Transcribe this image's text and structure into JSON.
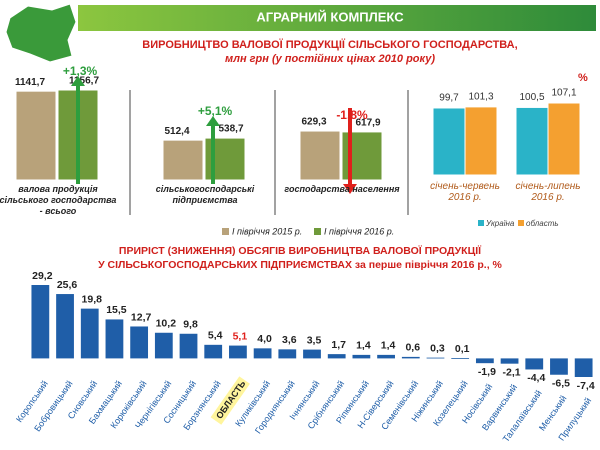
{
  "header": {
    "title": "АГРАРНИЙ КОМПЛЕКС"
  },
  "chart_data": [
    {
      "type": "photo-bar",
      "title": "ВИРОБНИЦТВО ВАЛОВОЇ ПРОДУКЦІЇ СІЛЬСЬКОГО ГОСПОДАРСТВА,",
      "subtitle": "млн грн (у постійних цінах 2010 року)",
      "categories": [
        "валова продукція сільського господарства - всього",
        "сільськогосподарські підприємства",
        "господарства населення"
      ],
      "series": [
        {
          "name": "I півріччя 2015 р.",
          "color": "#b8a27a",
          "values": [
            1141.7,
            512.4,
            629.3
          ],
          "value_labels": [
            "1141,7",
            "512,4",
            "629,3"
          ]
        },
        {
          "name": "I півріччя 2016 р.",
          "color": "#6f9a3a",
          "values": [
            1156.7,
            538.7,
            617.9
          ],
          "value_labels": [
            "1156,7",
            "538,7",
            "617,9"
          ]
        }
      ],
      "change_labels": [
        "+1,3%",
        "+5,1%",
        "-1,8%"
      ],
      "change_colors": [
        "#2e9e3e",
        "#2e9e3e",
        "#e0201c"
      ]
    },
    {
      "type": "bar",
      "unit": "%",
      "categories": [
        "січень-червень 2016 р.",
        "січень-липень 2016 р."
      ],
      "series": [
        {
          "name": "Україна",
          "color": "#2ab3c8",
          "values": [
            99.7,
            100.5
          ],
          "value_labels": [
            "99,7",
            "100,5"
          ]
        },
        {
          "name": "область",
          "color": "#f4a030",
          "values": [
            101.3,
            107.1
          ],
          "value_labels": [
            "101,3",
            "107,1"
          ]
        }
      ]
    },
    {
      "type": "bar",
      "title": "ПРИРІСТ (ЗНИЖЕННЯ) ОБСЯГІВ ВИРОБНИЦТВА ВАЛОВОЇ ПРОДУКЦІЇ",
      "subtitle": "У СІЛЬСЬКОГОСПОДАРСЬКИХ ПІДПРИЄМСТВАХ за перше півріччя 2016 р., %",
      "color": "#1f5ea8",
      "categories": [
        "Коропський",
        "Бобровицький",
        "Сновський",
        "Бахмацький",
        "Корюківський",
        "Чернігівський",
        "Сосницький",
        "Борзнянський",
        "ОБЛАСТЬ",
        "Куликівський",
        "Городнянський",
        "Ічнянський",
        "Срібнянський",
        "Ріпкинський",
        "Н-Сіверський",
        "Семенівський",
        "Ніжинський",
        "Козелецький",
        "Носівський",
        "Варвинський",
        "Талалаївський",
        "Менський",
        "Прилуцький"
      ],
      "values": [
        29.2,
        25.6,
        19.8,
        15.5,
        12.7,
        10.2,
        9.8,
        5.4,
        5.1,
        4.0,
        3.6,
        3.5,
        1.7,
        1.4,
        1.4,
        0.6,
        0.3,
        0.1,
        -1.9,
        -2.1,
        -4.4,
        -6.5,
        -7.4
      ],
      "value_labels": [
        "29,2",
        "25,6",
        "19,8",
        "15,5",
        "12,7",
        "10,2",
        "9,8",
        "5,4",
        "5,1",
        "4,0",
        "3,6",
        "3,5",
        "1,7",
        "1,4",
        "1,4",
        "0,6",
        "0,3",
        "0,1",
        "-1,9",
        "-2,1",
        "-4,4",
        "-6,5",
        "-7,4"
      ],
      "highlight_index": 8,
      "highlight_label_color": "#e0201c",
      "highlight_bg": "#fff59d"
    }
  ]
}
